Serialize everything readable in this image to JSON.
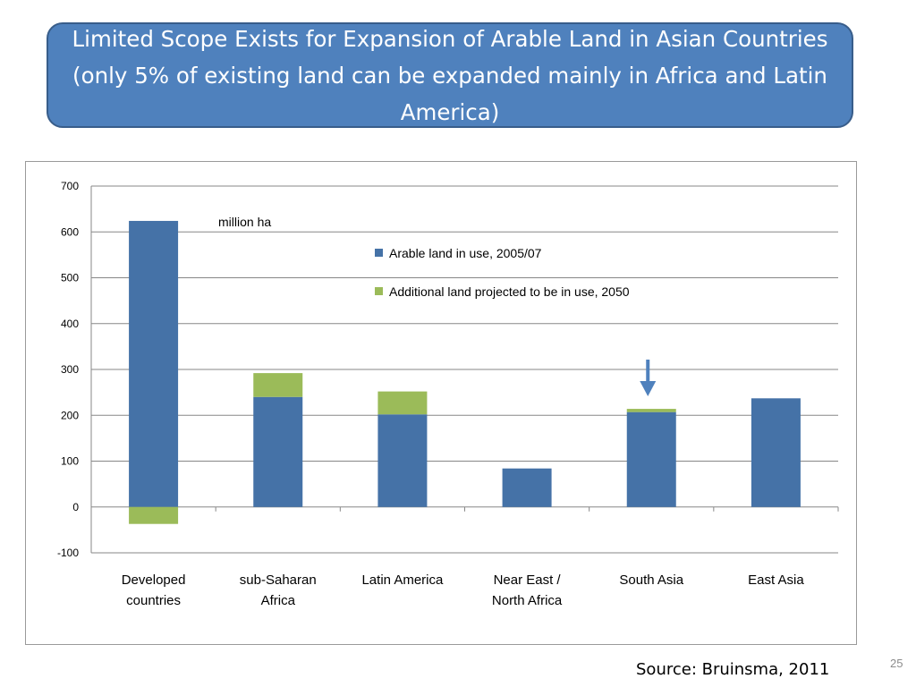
{
  "slide": {
    "title": "Limited Scope Exists for Expansion of Arable Land in Asian Countries (only 5% of existing land can be expanded mainly in Africa and Latin America)",
    "source": "Source: Bruinsma, 2011",
    "page_number": "25"
  },
  "chart_data": {
    "type": "bar",
    "stacked": true,
    "unit_label": "million ha",
    "categories": [
      [
        "Developed",
        "countries"
      ],
      [
        "sub-Saharan",
        "Africa"
      ],
      [
        "Latin America"
      ],
      [
        "Near East /",
        "North Africa"
      ],
      [
        "South Asia"
      ],
      [
        "East Asia"
      ]
    ],
    "series": [
      {
        "name": "Arable land in use, 2005/07",
        "color": "#4572a7",
        "values": [
          624,
          240,
          202,
          84,
          207,
          237
        ]
      },
      {
        "name": "Additional land projected to be in use, 2050",
        "color": "#9bbb59",
        "values": [
          -37,
          52,
          50,
          0,
          7,
          0
        ]
      }
    ],
    "ylim": [
      -100,
      700
    ],
    "yticks": [
      -100,
      0,
      100,
      200,
      300,
      400,
      500,
      600,
      700
    ],
    "grid": true,
    "legend_position": "top-right",
    "annotation": {
      "type": "arrow",
      "category": "South Asia",
      "color": "#4f81bd"
    }
  }
}
